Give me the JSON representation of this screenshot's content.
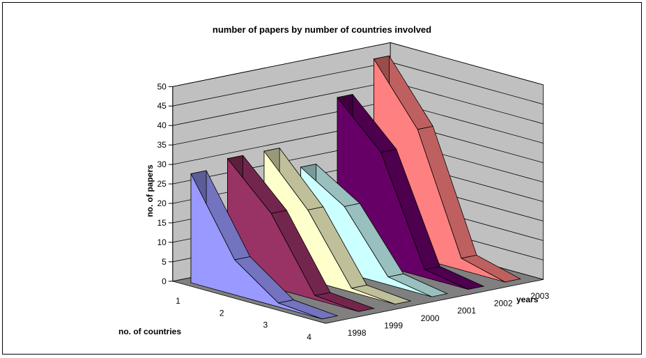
{
  "chart_data": {
    "type": "area",
    "variant": "3d",
    "title": "number of papers by number of countries involved",
    "ylabel": "no. of papers",
    "xlabel": "no. of countries",
    "zlabel": "years",
    "ylim": [
      0,
      50
    ],
    "yticks": [
      "0",
      "5",
      "10",
      "15",
      "20",
      "25",
      "30",
      "35",
      "40",
      "45",
      "50"
    ],
    "categories": [
      "1",
      "2",
      "3",
      "4"
    ],
    "series": [
      {
        "name": "1998",
        "values": [
          28,
          9,
          1,
          0
        ],
        "color": "#9999FF"
      },
      {
        "name": "1999",
        "values": [
          30,
          19,
          1,
          0
        ],
        "color": "#993366"
      },
      {
        "name": "2000",
        "values": [
          30,
          18,
          1,
          0
        ],
        "color": "#FFFFCC"
      },
      {
        "name": "2001",
        "values": [
          24,
          17,
          2,
          0
        ],
        "color": "#CCFFFF"
      },
      {
        "name": "2002",
        "values": [
          40,
          29,
          2,
          0
        ],
        "color": "#660066"
      },
      {
        "name": "2003",
        "values": [
          48,
          33,
          3,
          0
        ],
        "color": "#FF8080"
      }
    ],
    "grid": true,
    "wall_color": "#C0C0C0",
    "floor_color": "#808080"
  }
}
